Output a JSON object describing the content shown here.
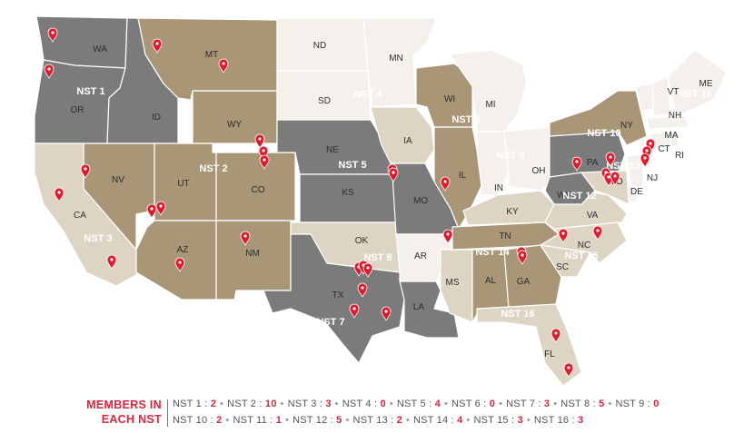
{
  "colors": {
    "dark": "#7b7b7b",
    "tan": "#a89676",
    "light": "#ddd4c4",
    "white": "#f4f1ec",
    "pin": "#e1192c",
    "accent": "#d7263d"
  },
  "states": [
    {
      "abbr": "WA"
    },
    {
      "abbr": "OR"
    },
    {
      "abbr": "ID"
    },
    {
      "abbr": "MT"
    },
    {
      "abbr": "WY"
    },
    {
      "abbr": "NV"
    },
    {
      "abbr": "UT"
    },
    {
      "abbr": "CO"
    },
    {
      "abbr": "CA"
    },
    {
      "abbr": "AZ"
    },
    {
      "abbr": "NM"
    },
    {
      "abbr": "ND"
    },
    {
      "abbr": "SD"
    },
    {
      "abbr": "NE"
    },
    {
      "abbr": "KS"
    },
    {
      "abbr": "OK"
    },
    {
      "abbr": "TX"
    },
    {
      "abbr": "MN"
    },
    {
      "abbr": "IA"
    },
    {
      "abbr": "MO"
    },
    {
      "abbr": "AR"
    },
    {
      "abbr": "LA"
    },
    {
      "abbr": "WI"
    },
    {
      "abbr": "IL"
    },
    {
      "abbr": "MI"
    },
    {
      "abbr": "IN"
    },
    {
      "abbr": "OH"
    },
    {
      "abbr": "KY"
    },
    {
      "abbr": "TN"
    },
    {
      "abbr": "MS"
    },
    {
      "abbr": "AL"
    },
    {
      "abbr": "GA"
    },
    {
      "abbr": "FL"
    },
    {
      "abbr": "SC"
    },
    {
      "abbr": "NC"
    },
    {
      "abbr": "VA"
    },
    {
      "abbr": "WV"
    },
    {
      "abbr": "PA"
    },
    {
      "abbr": "NY"
    },
    {
      "abbr": "VT"
    },
    {
      "abbr": "NH"
    },
    {
      "abbr": "ME"
    },
    {
      "abbr": "MA"
    },
    {
      "abbr": "CT"
    },
    {
      "abbr": "RI"
    },
    {
      "abbr": "NJ"
    },
    {
      "abbr": "DE"
    },
    {
      "abbr": "MD"
    }
  ],
  "nst_labels": [
    "NST 1",
    "NST 2",
    "NST 3",
    "NST 4",
    "NST 5",
    "NST 6",
    "NST 7",
    "NST 8",
    "NST 9",
    "NST 10",
    "NST 11",
    "NST 12",
    "NST 13",
    "NST 14",
    "NST 15",
    "NST 16"
  ],
  "legend": {
    "title_line1": "MEMBERS IN",
    "title_line2": "EACH NST",
    "row1": [
      {
        "label": "NST 1 :",
        "count": "2"
      },
      {
        "label": "NST 2 :",
        "count": "10"
      },
      {
        "label": "NST 3 :",
        "count": "3"
      },
      {
        "label": "NST 4 :",
        "count": "0"
      },
      {
        "label": "NST 5 :",
        "count": "4"
      },
      {
        "label": "NST 6 :",
        "count": "0"
      },
      {
        "label": "NST 7 :",
        "count": "3"
      },
      {
        "label": "NST 8 :",
        "count": "5"
      },
      {
        "label": "NST 9 :",
        "count": "0"
      }
    ],
    "row2": [
      {
        "label": "NST 10 :",
        "count": "2"
      },
      {
        "label": "NST 11 :",
        "count": "1"
      },
      {
        "label": "NST 12 :",
        "count": "5"
      },
      {
        "label": "NST 13 :",
        "count": "2"
      },
      {
        "label": "NST 14 :",
        "count": "4"
      },
      {
        "label": "NST 15 :",
        "count": "3"
      },
      {
        "label": "NST 16 :",
        "count": "3"
      }
    ]
  }
}
